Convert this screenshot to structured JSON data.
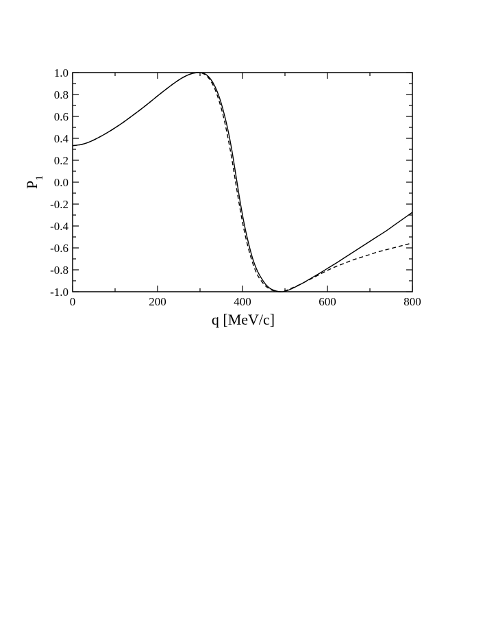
{
  "chart_data": {
    "type": "line",
    "title": "",
    "xlabel": "q [MeV/c]",
    "ylabel_main": "P",
    "ylabel_sub": "1",
    "xlim": [
      0,
      800
    ],
    "ylim": [
      -1.0,
      1.0
    ],
    "x_ticks": [
      0,
      200,
      400,
      600,
      800
    ],
    "x_tick_labels": [
      "0",
      "200",
      "400",
      "600",
      "800"
    ],
    "y_ticks": [
      -1.0,
      -0.8,
      -0.6,
      -0.4,
      -0.2,
      0.0,
      0.2,
      0.4,
      0.6,
      0.8,
      1.0
    ],
    "y_tick_labels": [
      "-1.0",
      "-0.8",
      "-0.6",
      "-0.4",
      "-0.2",
      "0.0",
      "0.2",
      "0.4",
      "0.6",
      "0.8",
      "1.0"
    ],
    "grid": false,
    "series": [
      {
        "style": "solid",
        "color": "#000000",
        "x": [
          0,
          20,
          40,
          60,
          80,
          100,
          120,
          140,
          160,
          180,
          200,
          220,
          240,
          260,
          280,
          295,
          305,
          315,
          325,
          335,
          345,
          355,
          365,
          375,
          385,
          395,
          405,
          415,
          425,
          435,
          445,
          455,
          465,
          475,
          485,
          495,
          505,
          520,
          540,
          560,
          580,
          600,
          620,
          640,
          660,
          680,
          700,
          720,
          740,
          760,
          780,
          800
        ],
        "y": [
          0.333,
          0.343,
          0.368,
          0.405,
          0.448,
          0.496,
          0.548,
          0.605,
          0.663,
          0.724,
          0.787,
          0.848,
          0.906,
          0.956,
          0.99,
          1.0,
          0.997,
          0.98,
          0.94,
          0.875,
          0.78,
          0.65,
          0.49,
          0.29,
          0.05,
          -0.19,
          -0.4,
          -0.57,
          -0.71,
          -0.81,
          -0.88,
          -0.935,
          -0.97,
          -0.988,
          -0.998,
          -1.0,
          -0.99,
          -0.965,
          -0.925,
          -0.88,
          -0.835,
          -0.787,
          -0.74,
          -0.69,
          -0.64,
          -0.59,
          -0.54,
          -0.49,
          -0.44,
          -0.385,
          -0.33,
          -0.275
        ]
      },
      {
        "style": "dashed",
        "color": "#000000",
        "x": [
          0,
          20,
          40,
          60,
          80,
          100,
          120,
          140,
          160,
          180,
          200,
          220,
          240,
          260,
          280,
          295,
          305,
          315,
          325,
          335,
          345,
          355,
          365,
          375,
          385,
          395,
          405,
          415,
          425,
          435,
          445,
          455,
          465,
          475,
          485,
          495,
          505,
          520,
          540,
          560,
          580,
          600,
          620,
          640,
          660,
          680,
          700,
          720,
          740,
          760,
          780,
          800
        ],
        "y": [
          0.333,
          0.343,
          0.368,
          0.405,
          0.448,
          0.496,
          0.548,
          0.605,
          0.663,
          0.724,
          0.787,
          0.848,
          0.906,
          0.956,
          0.99,
          1.0,
          0.995,
          0.972,
          0.925,
          0.85,
          0.74,
          0.6,
          0.42,
          0.21,
          -0.03,
          -0.26,
          -0.46,
          -0.62,
          -0.75,
          -0.845,
          -0.905,
          -0.95,
          -0.978,
          -0.993,
          -1.0,
          -0.998,
          -0.985,
          -0.96,
          -0.925,
          -0.885,
          -0.845,
          -0.805,
          -0.77,
          -0.74,
          -0.71,
          -0.685,
          -0.66,
          -0.635,
          -0.615,
          -0.595,
          -0.575,
          -0.555
        ]
      }
    ]
  }
}
